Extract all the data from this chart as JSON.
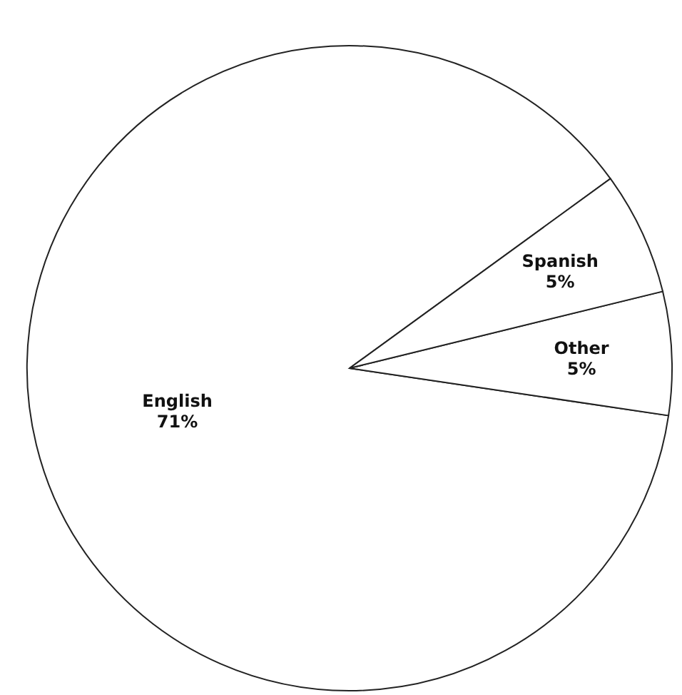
{
  "chart_data": {
    "type": "pie",
    "categories": [
      "English",
      "Other",
      "Spanish"
    ],
    "values": [
      71,
      5,
      5
    ],
    "value_labels": [
      "71%",
      "5%",
      "5%"
    ],
    "colors": [
      "#ffffff",
      "#ffffff",
      "#ffffff"
    ]
  }
}
